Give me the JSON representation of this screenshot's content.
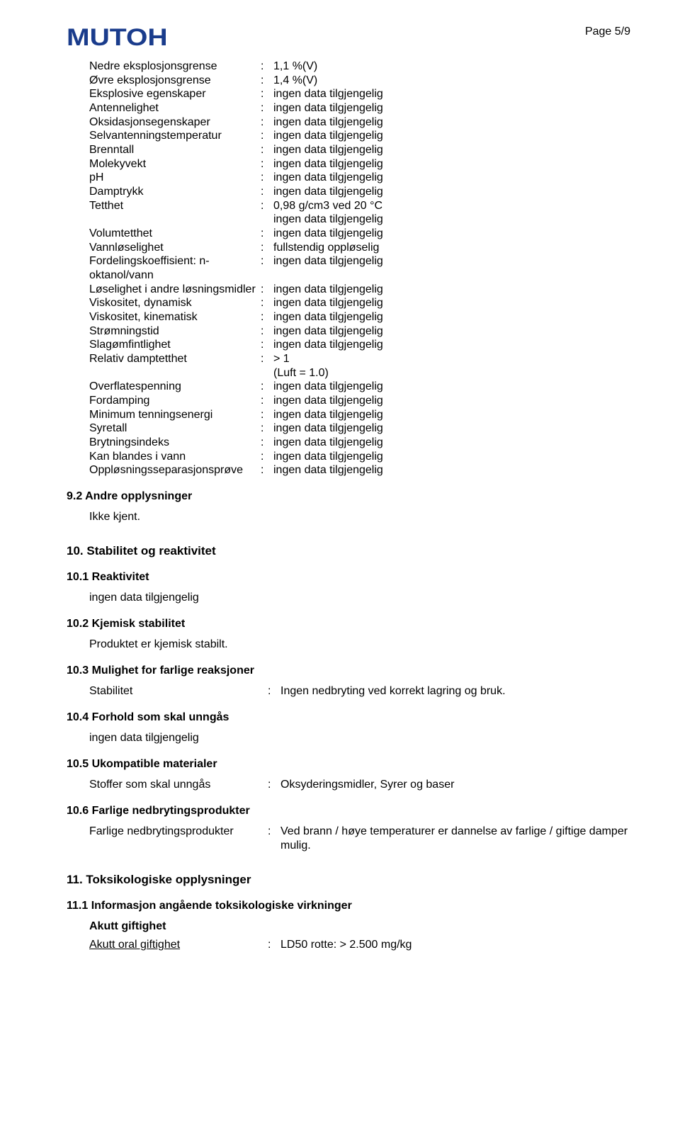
{
  "page_label": "Page 5/9",
  "brand_logo_text": "MUTOH",
  "section9": {
    "properties": [
      {
        "label": "Nedre eksplosjonsgrense",
        "value": "1,1 %(V)"
      },
      {
        "label": "Øvre eksplosjonsgrense",
        "value": "1,4 %(V)"
      },
      {
        "label": "Eksplosive egenskaper",
        "value": "ingen data tilgjengelig"
      },
      {
        "label": "Antennelighet",
        "value": "ingen data tilgjengelig"
      },
      {
        "label": "Oksidasjonsegenskaper",
        "value": "ingen data tilgjengelig"
      },
      {
        "label": "Selvantenningstemperatur",
        "value": "ingen data tilgjengelig"
      },
      {
        "label": "Brenntall",
        "value": "ingen data tilgjengelig"
      },
      {
        "label": "Molekyvekt",
        "value": "ingen data tilgjengelig"
      },
      {
        "label": "pH",
        "value": "ingen data tilgjengelig"
      },
      {
        "label": "Damptrykk",
        "value": "ingen data tilgjengelig"
      },
      {
        "label": "Tetthet",
        "value": "0,98 g/cm3 ved 20 °C",
        "extra": "ingen data tilgjengelig"
      },
      {
        "label": "Volumtetthet",
        "value": "ingen data tilgjengelig"
      },
      {
        "label": "Vannløselighet",
        "value": "fullstendig oppløselig"
      },
      {
        "label": "Fordelingskoeffisient: n-oktanol/vann",
        "value": "ingen data tilgjengelig"
      },
      {
        "label": "Løselighet i andre løsningsmidler",
        "value": "ingen data tilgjengelig"
      },
      {
        "label": "Viskositet, dynamisk",
        "value": "ingen data tilgjengelig"
      },
      {
        "label": "Viskositet, kinematisk",
        "value": "ingen data tilgjengelig"
      },
      {
        "label": "Strømningstid",
        "value": "ingen data tilgjengelig"
      },
      {
        "label": "Slagømfintlighet",
        "value": "ingen data tilgjengelig"
      },
      {
        "label": "Relativ damptetthet",
        "value": "> 1",
        "extra": "(Luft = 1.0)"
      },
      {
        "label": "Overflatespenning",
        "value": "ingen data tilgjengelig"
      },
      {
        "label": "Fordamping",
        "value": "ingen data tilgjengelig"
      },
      {
        "label": "Minimum tenningsenergi",
        "value": "ingen data tilgjengelig"
      },
      {
        "label": "Syretall",
        "value": "ingen data tilgjengelig"
      },
      {
        "label": "Brytningsindeks",
        "value": "ingen data tilgjengelig"
      },
      {
        "label": "Kan blandes i vann",
        "value": "ingen data tilgjengelig"
      },
      {
        "label": "Oppløsningsseparasjonsprøve",
        "value": "ingen data tilgjengelig"
      }
    ],
    "sub9_2_heading": "9.2 Andre opplysninger",
    "sub9_2_body": "Ikke kjent."
  },
  "section10": {
    "title": "10. Stabilitet og reaktivitet",
    "s10_1_heading": "10.1 Reaktivitet",
    "s10_1_body": "ingen data tilgjengelig",
    "s10_2_heading": "10.2 Kjemisk stabilitet",
    "s10_2_body": "Produktet er kjemisk stabilt.",
    "s10_3_heading": "10.3 Mulighet for farlige reaksjoner",
    "s10_3_label": "Stabilitet",
    "s10_3_value": "Ingen nedbryting ved korrekt lagring og bruk.",
    "s10_4_heading": "10.4 Forhold som skal unngås",
    "s10_4_body": "ingen data tilgjengelig",
    "s10_5_heading": "10.5 Ukompatible materialer",
    "s10_5_label": "Stoffer som skal unngås",
    "s10_5_value": "Oksyderingsmidler, Syrer og baser",
    "s10_6_heading": "10.6 Farlige nedbrytingsprodukter",
    "s10_6_label": "Farlige nedbrytingsprodukter",
    "s10_6_value": "Ved brann / høye temperaturer er dannelse av farlige / giftige damper mulig."
  },
  "section11": {
    "title": "11. Toksikologiske opplysninger",
    "s11_1_heading": "11.1 Informasjon angående toksikologiske virkninger",
    "s11_1_sub": "Akutt giftighet",
    "s11_1_label": "Akutt oral giftighet",
    "s11_1_value": "LD50 rotte:  > 2.500 mg/kg"
  }
}
